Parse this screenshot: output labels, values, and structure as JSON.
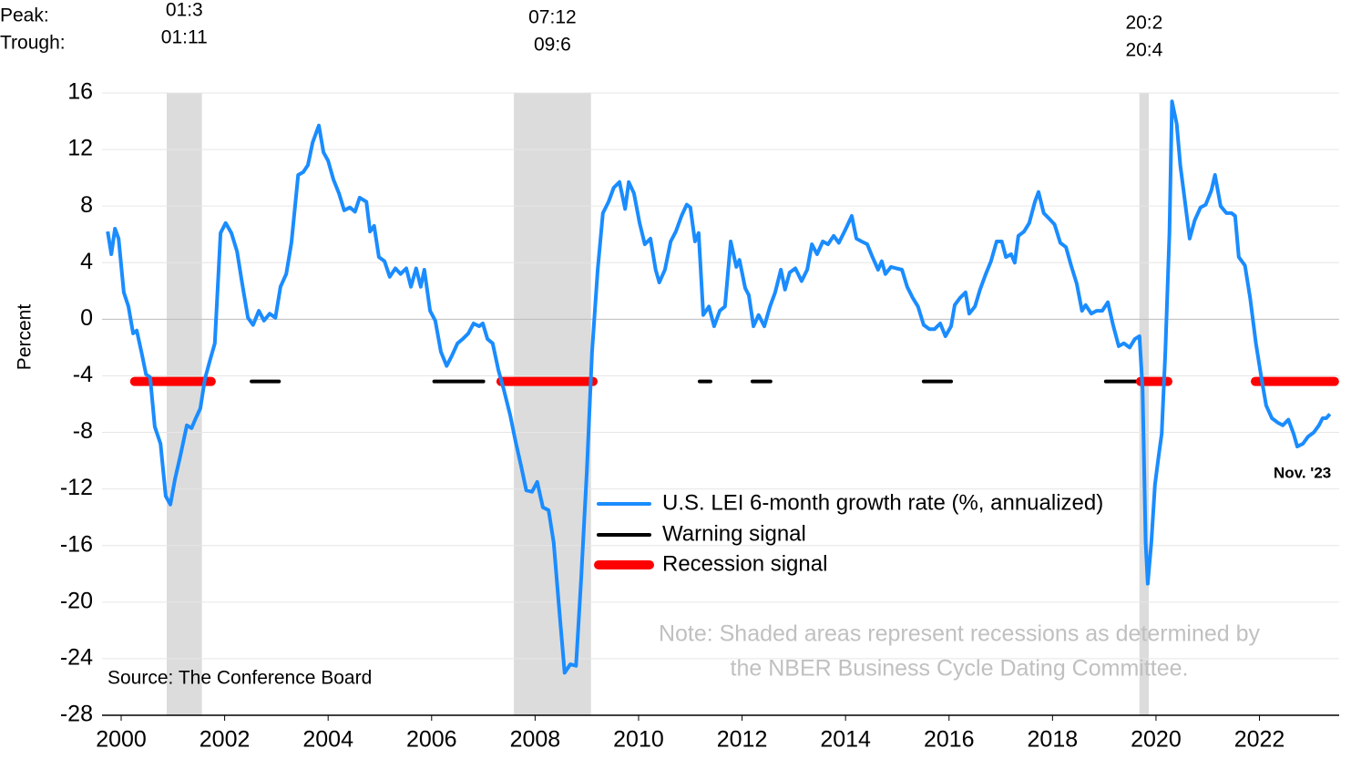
{
  "chart_data": {
    "type": "line",
    "ylabel": "Percent",
    "source": "Source: The Conference Board",
    "note": [
      "Note: Shaded areas represent recessions as determined by",
      "the NBER Business Cycle Dating Committee."
    ],
    "annotation": "Nov. '23",
    "peak_label": "Peak:",
    "trough_label": "Trough:",
    "recessions": [
      {
        "x": [
          2000.88,
          2001.56
        ],
        "peak": "01:3",
        "trough": "01:11"
      },
      {
        "x": [
          2007.59,
          2009.08
        ],
        "peak": "07:12",
        "trough": "09:6"
      },
      {
        "x": [
          2019.68,
          2019.86
        ],
        "peak": "20:2",
        "trough": "20:4"
      }
    ],
    "xlim": [
      1999.63,
      2023.54
    ],
    "xticks": [
      2000,
      2002,
      2004,
      2006,
      2008,
      2010,
      2012,
      2014,
      2016,
      2018,
      2020,
      2022
    ],
    "ylim": [
      -28,
      16
    ],
    "yticks": [
      -28,
      -24,
      -20,
      -16,
      -12,
      -8,
      -4,
      0,
      4,
      8,
      12,
      16
    ],
    "grid": true,
    "series": [
      {
        "name": "U.S. LEI 6-month growth rate (%, annualized)",
        "color": "#1a8cff",
        "x": [
          1999.74,
          1999.81,
          1999.88,
          1999.95,
          2000.05,
          2000.14,
          2000.23,
          2000.3,
          2000.39,
          2000.48,
          2000.56,
          2000.65,
          2000.76,
          2000.86,
          2000.95,
          2001.04,
          2001.14,
          2001.27,
          2001.36,
          2001.43,
          2001.53,
          2001.62,
          2001.71,
          2001.81,
          2001.92,
          2002.02,
          2002.13,
          2002.24,
          2002.34,
          2002.45,
          2002.55,
          2002.66,
          2002.76,
          2002.87,
          2002.98,
          2003.08,
          2003.19,
          2003.29,
          2003.42,
          2003.52,
          2003.61,
          2003.7,
          2003.82,
          2003.91,
          2004.0,
          2004.1,
          2004.21,
          2004.31,
          2004.42,
          2004.52,
          2004.61,
          2004.74,
          2004.81,
          2004.89,
          2004.98,
          2005.09,
          2005.19,
          2005.3,
          2005.4,
          2005.51,
          2005.6,
          2005.7,
          2005.79,
          2005.86,
          2005.97,
          2006.07,
          2006.18,
          2006.29,
          2006.39,
          2006.5,
          2006.6,
          2006.71,
          2006.81,
          2006.92,
          2006.99,
          2007.08,
          2007.18,
          2007.29,
          2007.39,
          2007.52,
          2007.62,
          2007.73,
          2007.83,
          2007.94,
          2008.04,
          2008.15,
          2008.26,
          2008.36,
          2008.47,
          2008.57,
          2008.68,
          2008.79,
          2008.89,
          2009.0,
          2009.1,
          2009.21,
          2009.31,
          2009.42,
          2009.52,
          2009.63,
          2009.74,
          2009.81,
          2009.91,
          2010.02,
          2010.12,
          2010.23,
          2010.33,
          2010.4,
          2010.51,
          2010.62,
          2010.72,
          2010.83,
          2010.93,
          2011.0,
          2011.09,
          2011.16,
          2011.25,
          2011.36,
          2011.46,
          2011.57,
          2011.67,
          2011.78,
          2011.89,
          2011.95,
          2012.06,
          2012.13,
          2012.22,
          2012.32,
          2012.43,
          2012.54,
          2012.64,
          2012.75,
          2012.83,
          2012.92,
          2013.03,
          2013.15,
          2013.26,
          2013.35,
          2013.45,
          2013.56,
          2013.66,
          2013.77,
          2013.87,
          2013.98,
          2014.12,
          2014.21,
          2014.31,
          2014.42,
          2014.52,
          2014.63,
          2014.7,
          2014.77,
          2014.88,
          2014.98,
          2015.09,
          2015.19,
          2015.3,
          2015.4,
          2015.51,
          2015.62,
          2015.72,
          2015.83,
          2015.93,
          2016.04,
          2016.11,
          2016.21,
          2016.32,
          2016.39,
          2016.5,
          2016.6,
          2016.71,
          2016.81,
          2016.92,
          2017.02,
          2017.1,
          2017.2,
          2017.27,
          2017.34,
          2017.45,
          2017.55,
          2017.66,
          2017.73,
          2017.83,
          2017.94,
          2018.04,
          2018.15,
          2018.26,
          2018.36,
          2018.47,
          2018.57,
          2018.64,
          2018.75,
          2018.85,
          2018.96,
          2019.07,
          2019.17,
          2019.28,
          2019.38,
          2019.49,
          2019.59,
          2019.68,
          2019.74,
          2019.8,
          2019.84,
          2019.91,
          2019.98,
          2020.05,
          2020.11,
          2020.18,
          2020.26,
          2020.31,
          2020.4,
          2020.47,
          2020.54,
          2020.65,
          2020.75,
          2020.86,
          2020.96,
          2021.07,
          2021.14,
          2021.25,
          2021.36,
          2021.46,
          2021.53,
          2021.6,
          2021.72,
          2021.82,
          2021.93,
          2022.04,
          2022.13,
          2022.24,
          2022.35,
          2022.45,
          2022.56,
          2022.66,
          2022.73,
          2022.84,
          2022.94,
          2023.05,
          2023.15,
          2023.22,
          2023.29,
          2023.36
        ],
        "values": [
          6.2,
          4.6,
          6.4,
          5.7,
          1.9,
          0.9,
          -1.0,
          -0.8,
          -2.3,
          -3.9,
          -4.1,
          -7.6,
          -8.8,
          -12.5,
          -13.1,
          -11.3,
          -9.7,
          -7.5,
          -7.7,
          -7.1,
          -6.3,
          -4.2,
          -3.0,
          -1.7,
          6.1,
          6.8,
          6.1,
          4.8,
          2.5,
          0.1,
          -0.4,
          0.6,
          -0.1,
          0.4,
          0.1,
          2.3,
          3.2,
          5.4,
          10.2,
          10.4,
          10.9,
          12.5,
          13.7,
          11.8,
          11.2,
          9.9,
          8.9,
          7.7,
          7.9,
          7.6,
          8.6,
          8.3,
          6.2,
          6.6,
          4.4,
          4.1,
          3.0,
          3.6,
          3.2,
          3.6,
          2.3,
          3.6,
          2.3,
          3.5,
          0.6,
          -0.1,
          -2.3,
          -3.3,
          -2.6,
          -1.7,
          -1.4,
          -1.0,
          -0.3,
          -0.5,
          -0.3,
          -1.4,
          -1.7,
          -3.6,
          -4.9,
          -6.8,
          -8.6,
          -10.4,
          -12.1,
          -12.2,
          -11.5,
          -13.3,
          -13.5,
          -15.8,
          -20.7,
          -25.0,
          -24.4,
          -24.5,
          -18.4,
          -10.7,
          -2.3,
          3.5,
          7.5,
          8.3,
          9.3,
          9.7,
          7.8,
          9.7,
          8.9,
          6.8,
          5.3,
          5.7,
          3.5,
          2.6,
          3.5,
          5.5,
          6.2,
          7.3,
          8.1,
          7.9,
          5.5,
          6.1,
          0.3,
          0.9,
          -0.5,
          0.6,
          0.9,
          5.5,
          3.7,
          4.2,
          2.2,
          1.7,
          -0.5,
          0.3,
          -0.5,
          0.9,
          1.9,
          3.5,
          2.1,
          3.3,
          3.6,
          2.7,
          3.5,
          5.3,
          4.6,
          5.5,
          5.3,
          5.9,
          5.4,
          6.2,
          7.3,
          5.7,
          5.5,
          5.3,
          4.4,
          3.5,
          4.1,
          3.2,
          3.7,
          3.6,
          3.5,
          2.3,
          1.5,
          0.9,
          -0.4,
          -0.7,
          -0.7,
          -0.3,
          -1.2,
          -0.5,
          1.0,
          1.5,
          1.9,
          0.4,
          0.9,
          2.1,
          3.2,
          4.1,
          5.5,
          5.5,
          4.4,
          4.6,
          4.0,
          5.9,
          6.2,
          6.8,
          8.3,
          9.0,
          7.5,
          7.1,
          6.7,
          5.4,
          5.1,
          3.8,
          2.5,
          0.6,
          1.0,
          0.4,
          0.6,
          0.6,
          1.2,
          -0.4,
          -1.9,
          -1.7,
          -2.0,
          -1.4,
          -1.2,
          -4.9,
          -15.8,
          -18.7,
          -15.8,
          -11.7,
          -9.7,
          -8.1,
          -2.3,
          6.1,
          15.4,
          13.8,
          10.9,
          8.9,
          5.7,
          7.0,
          7.9,
          8.1,
          9.1,
          10.2,
          8.0,
          7.5,
          7.5,
          7.3,
          4.4,
          3.8,
          1.5,
          -1.7,
          -4.2,
          -6.1,
          -7.0,
          -7.3,
          -7.5,
          -7.1,
          -8.1,
          -9.0,
          -8.8,
          -8.3,
          -8.0,
          -7.5,
          -7.0,
          -7.0,
          -6.7
        ]
      }
    ],
    "signals": [
      {
        "name": "Warning signal",
        "color": "#000000",
        "level": -4.4,
        "segments": [
          [
            2000.26,
            2001.79
          ],
          [
            2002.52,
            2003.05
          ],
          [
            2006.05,
            2007.0
          ],
          [
            2011.18,
            2011.39
          ],
          [
            2012.2,
            2012.55
          ],
          [
            2015.51,
            2016.04
          ],
          [
            2019.03,
            2019.67
          ]
        ]
      },
      {
        "name": "Recession signal",
        "color": "#ff0000",
        "level": -4.4,
        "segments": [
          [
            2000.26,
            2001.74
          ],
          [
            2007.34,
            2009.12
          ],
          [
            2019.7,
            2020.23
          ],
          [
            2021.92,
            2023.45
          ]
        ]
      }
    ]
  }
}
